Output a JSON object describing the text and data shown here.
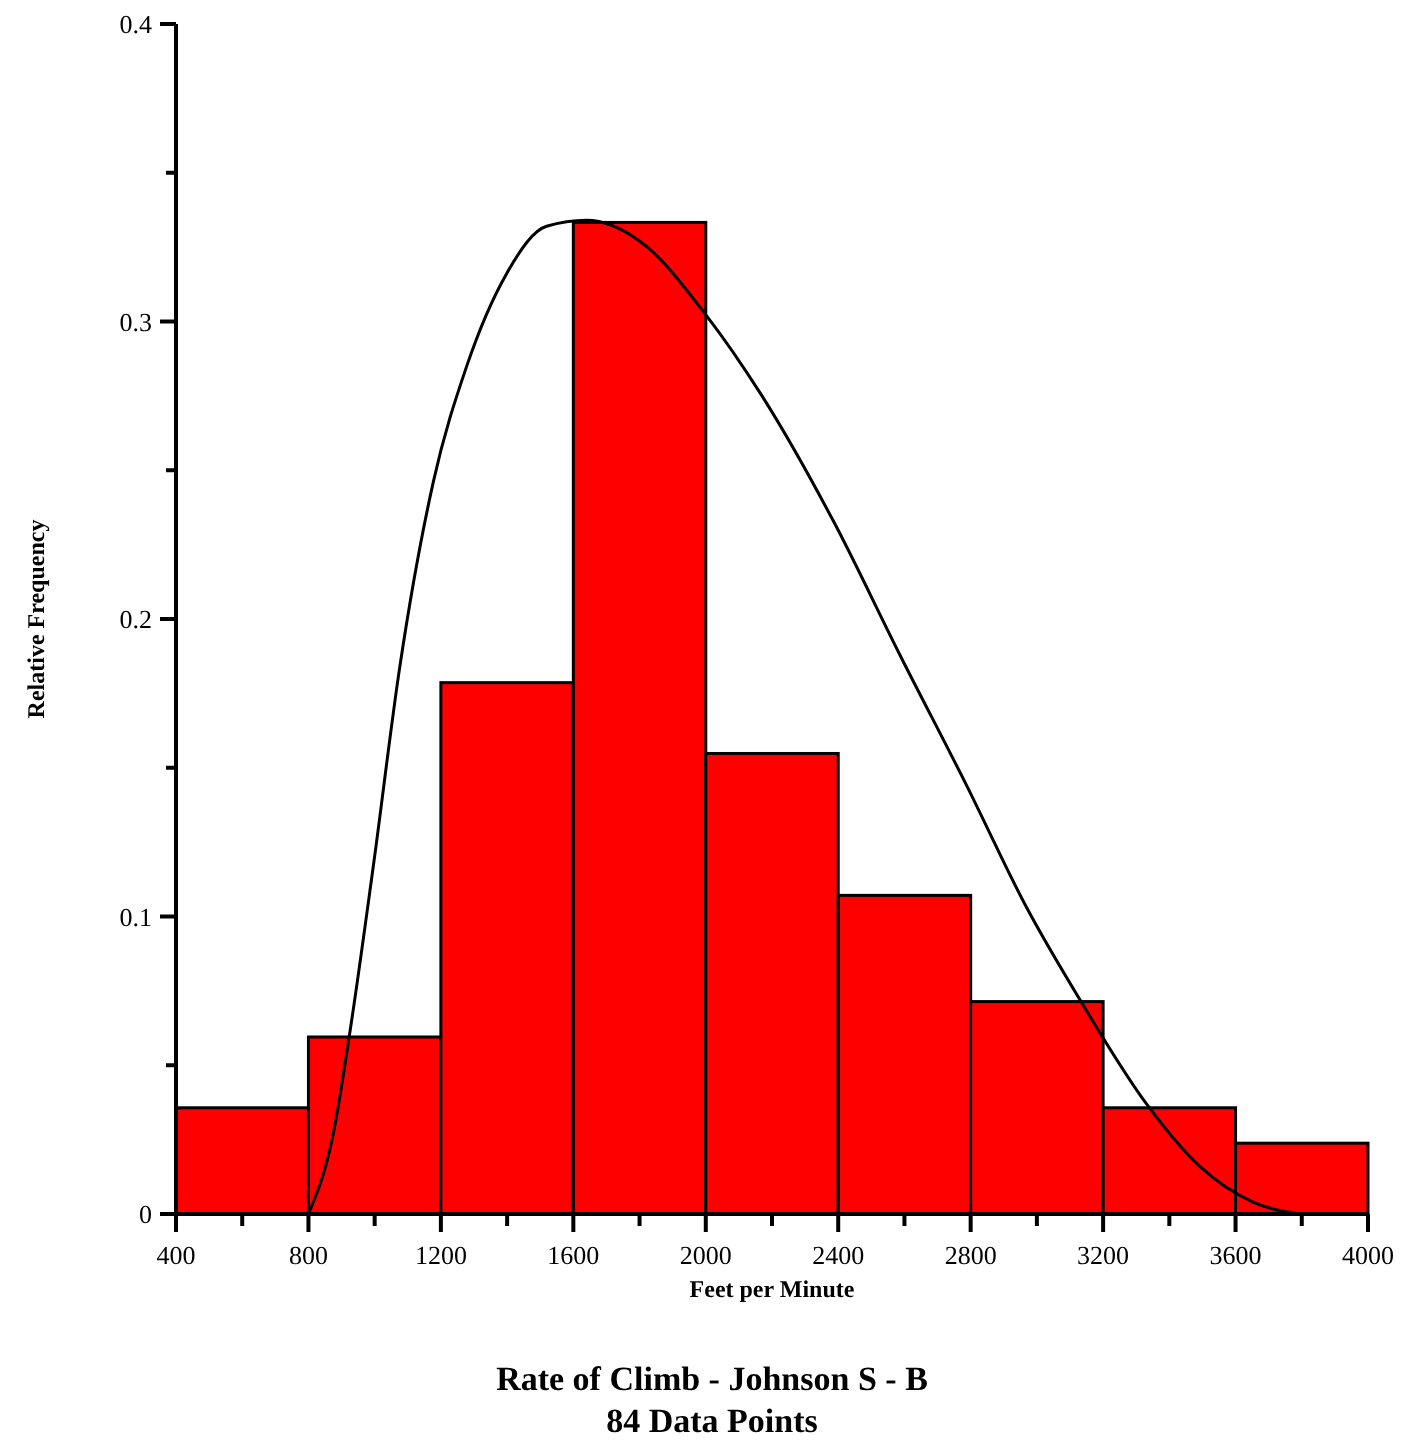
{
  "chart_data": {
    "type": "histogram",
    "title": "Rate of Climb - Johnson S - B",
    "subtitle": "84 Data Points",
    "xlabel": "Feet per Minute",
    "ylabel": "Relative Frequency",
    "bins": [
      400,
      800,
      1200,
      1600,
      2000,
      2400,
      2800,
      3200,
      3600,
      4000
    ],
    "values": [
      0.0357,
      0.0595,
      0.1786,
      0.3333,
      0.1548,
      0.1071,
      0.0714,
      0.0357,
      0.0238
    ],
    "color": "#ff0000",
    "series": [
      {
        "type": "line",
        "color": "#000000",
        "x": [
          800,
          875,
          925,
          996,
          1076,
          1177,
          1278,
          1398,
          1519,
          1640,
          1801,
          2002,
          2164,
          2385,
          2586,
          2788,
          2969,
          3130,
          3331,
          3492,
          3653,
          3794
        ],
        "values": [
          0,
          0.027,
          0.061,
          0.117,
          0.184,
          0.246,
          0.285,
          0.316,
          0.332,
          0.334,
          0.327,
          0.302,
          0.276,
          0.233,
          0.188,
          0.144,
          0.103,
          0.072,
          0.037,
          0.016,
          0.004,
          0
        ]
      }
    ],
    "xlim": [
      400,
      4000
    ],
    "ylim": [
      0,
      0.4
    ],
    "xticks": [
      400,
      {
        "value": 600,
        "label": null
      },
      800,
      {
        "value": 1000,
        "label": null
      },
      1200,
      {
        "value": 1400,
        "label": null
      },
      1600,
      {
        "value": 1800,
        "label": null
      },
      2000,
      {
        "value": 2200,
        "label": null
      },
      2400,
      {
        "value": 2600,
        "label": null
      },
      2800,
      {
        "value": 3000,
        "label": null
      },
      3200,
      {
        "value": 3400,
        "label": null
      },
      3600,
      {
        "value": 3800,
        "label": null
      },
      4000
    ],
    "yticks": [
      0,
      {
        "value": 0.05,
        "label": null
      },
      0.1,
      {
        "value": 0.15,
        "label": null
      },
      0.2,
      {
        "value": 0.25,
        "label": null
      },
      0.3,
      {
        "value": 0.35,
        "label": null
      },
      0.4
    ],
    "grid": false,
    "marker": "none",
    "line_style": "solid"
  }
}
